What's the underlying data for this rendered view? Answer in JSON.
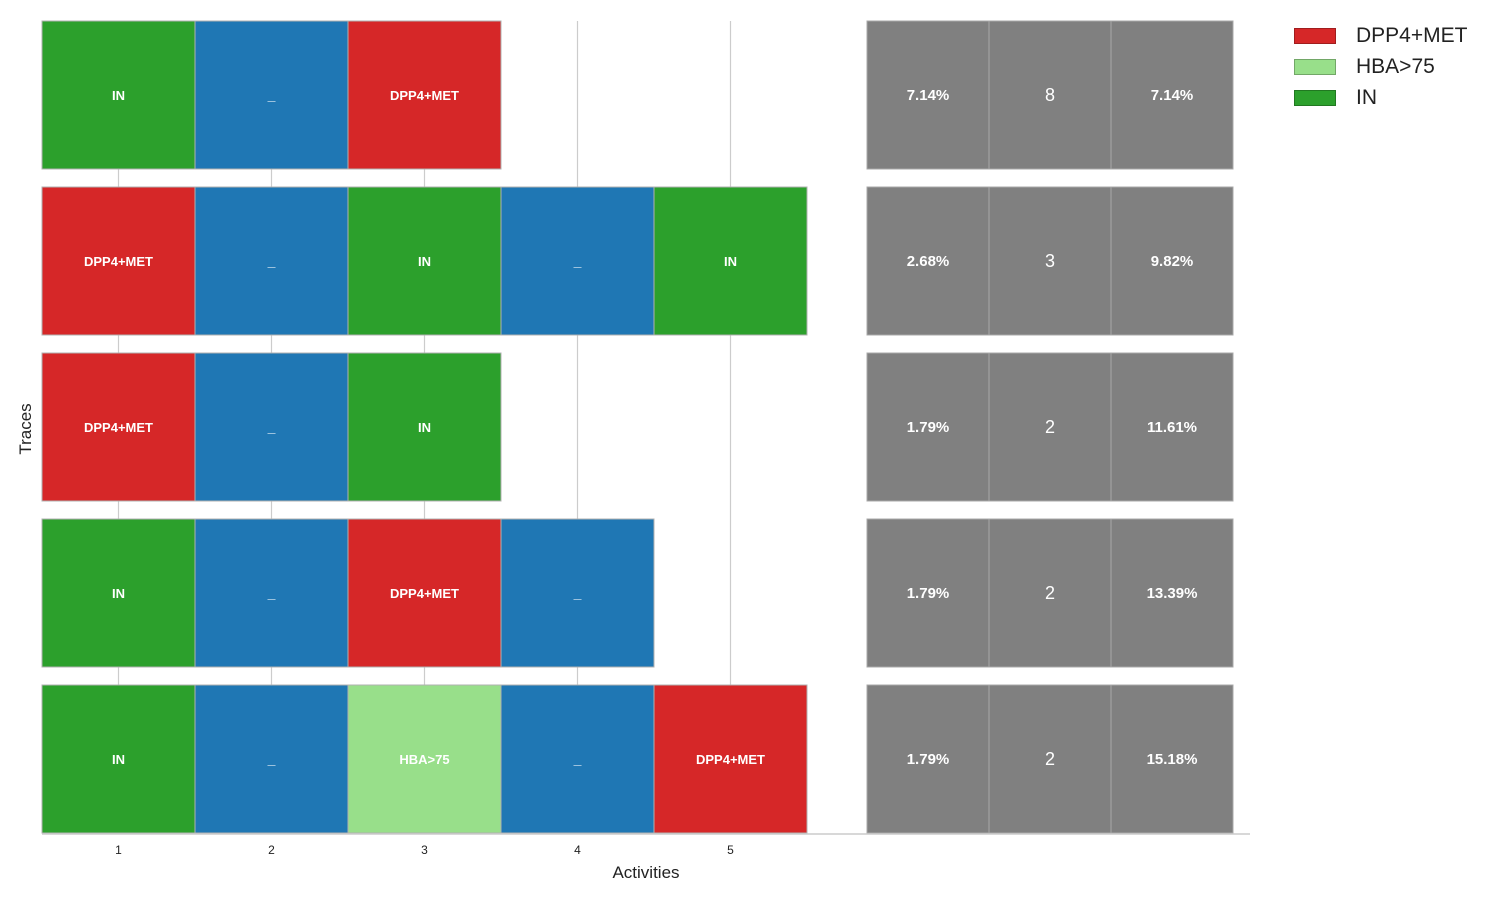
{
  "chart_data": {
    "type": "trace-variants",
    "xlabel": "Activities",
    "ylabel": "Traces",
    "x_ticks": [
      "1",
      "2",
      "3",
      "4",
      "5"
    ],
    "colors": {
      "DPP4+MET": "#d62728",
      "HBA>75": "#98df8a",
      "IN": "#2ca02c",
      "_": "#1f77b4",
      "stats": "#808080"
    },
    "legend": {
      "placement": "outside-top-right",
      "entries": [
        "DPP4+MET",
        "HBA>75",
        "IN"
      ]
    },
    "traces": [
      {
        "activities": [
          "IN",
          "_",
          "DPP4+MET"
        ],
        "stats": [
          "7.14%",
          "8",
          "7.14%"
        ]
      },
      {
        "activities": [
          "DPP4+MET",
          "_",
          "IN",
          "_",
          "IN"
        ],
        "stats": [
          "2.68%",
          "3",
          "9.82%"
        ]
      },
      {
        "activities": [
          "DPP4+MET",
          "_",
          "IN"
        ],
        "stats": [
          "1.79%",
          "2",
          "11.61%"
        ]
      },
      {
        "activities": [
          "IN",
          "_",
          "DPP4+MET",
          "_"
        ],
        "stats": [
          "1.79%",
          "2",
          "13.39%"
        ]
      },
      {
        "activities": [
          "IN",
          "_",
          "HBA>75",
          "_",
          "DPP4+MET"
        ],
        "stats": [
          "1.79%",
          "2",
          "15.18%"
        ]
      }
    ]
  }
}
